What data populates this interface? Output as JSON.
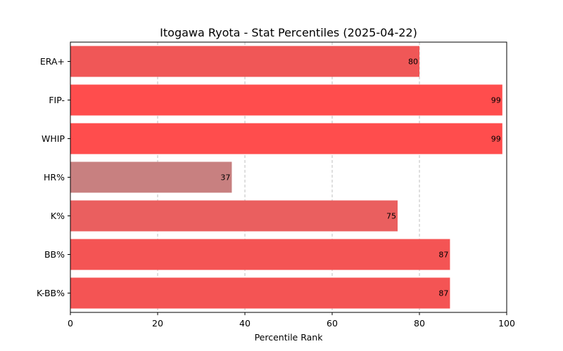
{
  "chart_data": {
    "type": "bar",
    "orientation": "horizontal",
    "title": "Itogawa Ryota - Stat Percentiles (2025-04-22)",
    "xlabel": "Percentile Rank",
    "ylabel": "",
    "xlim": [
      0,
      100
    ],
    "xticks": [
      0,
      20,
      40,
      60,
      80,
      100
    ],
    "grid": "vertical dashed",
    "categories": [
      "ERA+",
      "FIP-",
      "WHIP",
      "HR%",
      "K%",
      "BB%",
      "K-BB%"
    ],
    "values": [
      80,
      99,
      99,
      37,
      75,
      87,
      87
    ],
    "bar_colors": [
      "#f05757",
      "#ff4d4d",
      "#ff4d4d",
      "#c88080",
      "#ea5f5f",
      "#f45454",
      "#f45454"
    ],
    "data_labels": [
      "80",
      "99",
      "99",
      "37",
      "75",
      "87",
      "87"
    ]
  }
}
